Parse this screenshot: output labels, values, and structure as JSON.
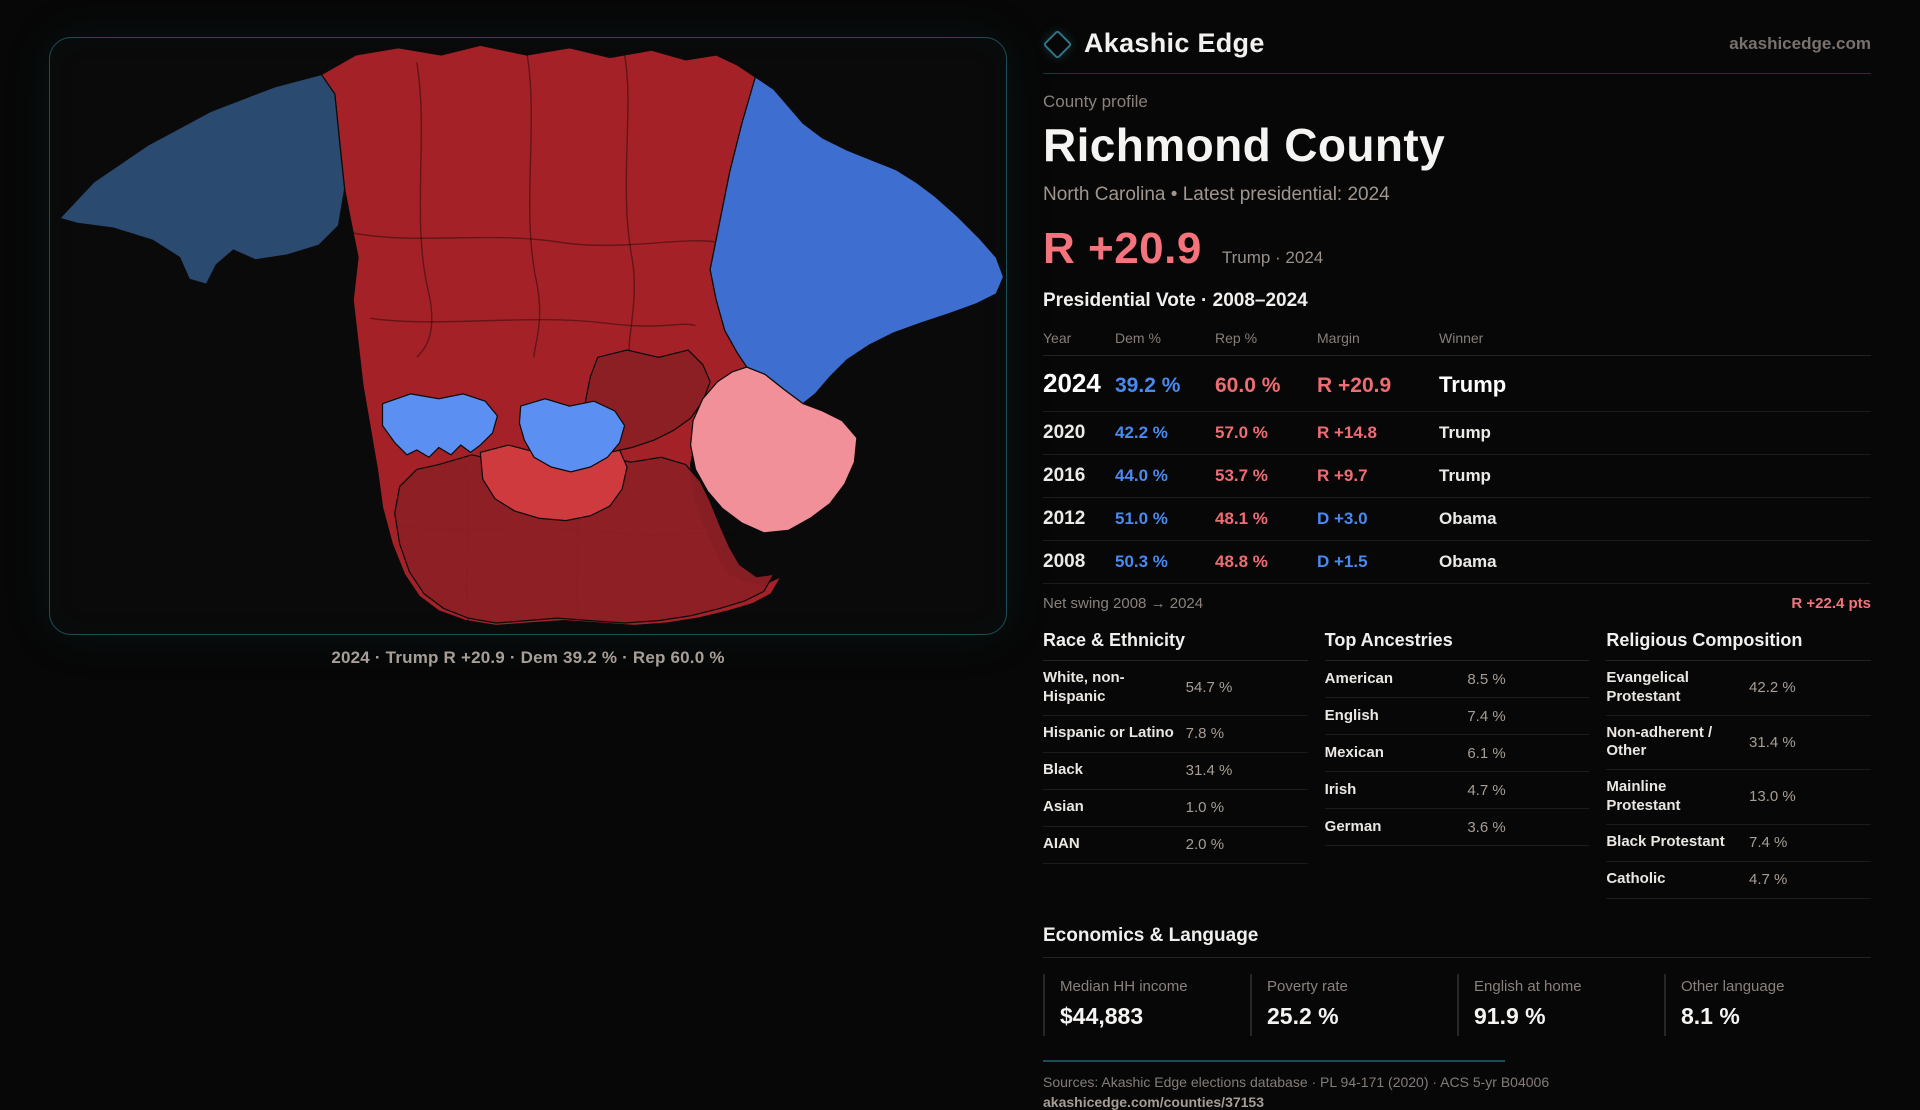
{
  "brand": {
    "name": "Akashic Edge",
    "domain": "akashicedge.com"
  },
  "map": {
    "caption": "2024 · Trump R +20.9 · Dem 39.2 % · Rep 60.0 %",
    "palette": {
      "navy": "#2b4a70",
      "red": "#a42227",
      "maroon": "#8c1f24",
      "bright_red": "#cf3a3f",
      "blue": "#3e6fd0",
      "light_blue": "#5b90f2",
      "pink": "#f2909a",
      "border": "#0b0b0b"
    }
  },
  "profile": {
    "eyebrow": "County profile",
    "title": "Richmond County",
    "subtitle": "North Carolina • Latest presidential: 2024",
    "headline_margin": "R +20.9",
    "headline_context": "Trump · 2024"
  },
  "table": {
    "title": "Presidential Vote · 2008–2024",
    "columns": [
      "Year",
      "Dem %",
      "Rep %",
      "Margin",
      "Winner"
    ],
    "rows": [
      {
        "year": "2024",
        "dem": "39.2 %",
        "rep": "60.0 %",
        "margin": "R +20.9",
        "margin_party": "R",
        "winner": "Trump"
      },
      {
        "year": "2020",
        "dem": "42.2 %",
        "rep": "57.0 %",
        "margin": "R +14.8",
        "margin_party": "R",
        "winner": "Trump"
      },
      {
        "year": "2016",
        "dem": "44.0 %",
        "rep": "53.7 %",
        "margin": "R +9.7",
        "margin_party": "R",
        "winner": "Trump"
      },
      {
        "year": "2012",
        "dem": "51.0 %",
        "rep": "48.1 %",
        "margin": "D +3.0",
        "margin_party": "D",
        "winner": "Obama"
      },
      {
        "year": "2008",
        "dem": "50.3 %",
        "rep": "48.8 %",
        "margin": "D +1.5",
        "margin_party": "D",
        "winner": "Obama"
      }
    ],
    "net_swing_label": "Net swing 2008 → 2024",
    "net_swing_value": "R +22.4 pts"
  },
  "demographics": {
    "race": {
      "title": "Race & Ethnicity",
      "rows": [
        {
          "label": "White, non-Hispanic",
          "value": "54.7 %",
          "pct": 54.7,
          "color": "#92aac9"
        },
        {
          "label": "Hispanic or Latino",
          "value": "7.8 %",
          "pct": 7.8,
          "color": "#e5a23c"
        },
        {
          "label": "Black",
          "value": "31.4 %",
          "pct": 31.4,
          "color": "#8d72d8"
        },
        {
          "label": "Asian",
          "value": "1.0 %",
          "pct": 1.0,
          "color": "#2ea98a"
        },
        {
          "label": "AIAN",
          "value": "2.0 %",
          "pct": 2.0,
          "color": "#d87f2b"
        }
      ]
    },
    "ancestries": {
      "title": "Top Ancestries",
      "rows": [
        {
          "label": "American",
          "value": "8.5 %",
          "pct": 8.5,
          "color": "#8fa5c0"
        },
        {
          "label": "English",
          "value": "7.4 %",
          "pct": 7.4,
          "color": "#8fa5c0"
        },
        {
          "label": "Mexican",
          "value": "6.1 %",
          "pct": 6.1,
          "color": "#e5a23c"
        },
        {
          "label": "Irish",
          "value": "4.7 %",
          "pct": 4.7,
          "color": "#97a1af"
        },
        {
          "label": "German",
          "value": "3.6 %",
          "pct": 3.6,
          "color": "#97a1af"
        }
      ]
    },
    "religion": {
      "title": "Religious Composition",
      "rows": [
        {
          "label": "Evangelical Protestant",
          "value": "42.2 %",
          "pct": 42.2,
          "color": "#e2636e"
        },
        {
          "label": "Non-adherent / Other",
          "value": "31.4 %",
          "pct": 31.4,
          "color": "#68788f"
        },
        {
          "label": "Mainline Protestant",
          "value": "13.0 %",
          "pct": 13.0,
          "color": "#4a89ef"
        },
        {
          "label": "Black Protestant",
          "value": "7.4 %",
          "pct": 7.4,
          "color": "#8d72d8"
        },
        {
          "label": "Catholic",
          "value": "4.7 %",
          "pct": 4.7,
          "color": "#e2b83c"
        }
      ]
    }
  },
  "economics": {
    "title": "Economics & Language",
    "stats": [
      {
        "label": "Median HH income",
        "value": "$44,883"
      },
      {
        "label": "Poverty rate",
        "value": "25.2 %"
      },
      {
        "label": "English at home",
        "value": "91.9 %"
      },
      {
        "label": "Other language",
        "value": "8.1 %"
      }
    ]
  },
  "footer": {
    "sources": "Sources: Akashic Edge elections database · PL 94-171 (2020) · ACS 5-yr B04006",
    "permalink": "akashicedge.com/counties/37153"
  }
}
